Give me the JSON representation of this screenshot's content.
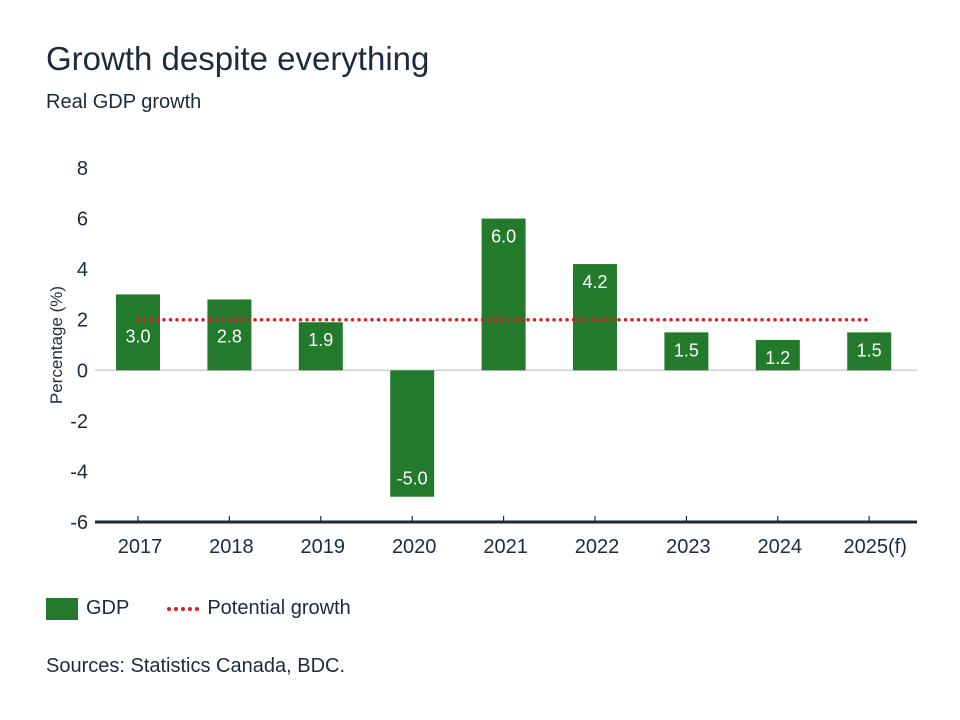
{
  "title": "Growth despite everything",
  "subtitle": "Real GDP growth",
  "source": "Sources: Statistics Canada, BDC.",
  "chart_data": {
    "type": "bar",
    "categories": [
      "2017",
      "2018",
      "2019",
      "2020",
      "2021",
      "2022",
      "2023",
      "2024",
      "2025(f)"
    ],
    "series": [
      {
        "name": "GDP",
        "values": [
          3.0,
          2.8,
          1.9,
          -5.0,
          6.0,
          4.2,
          1.5,
          1.2,
          1.5
        ],
        "color": "#237a2c"
      },
      {
        "name": "Potential growth",
        "type": "line",
        "style": "dotted",
        "values": [
          2,
          2,
          2,
          2,
          2,
          2,
          2,
          2,
          2
        ],
        "color": "#d61f26"
      }
    ],
    "data_labels": [
      "3.0",
      "2.8",
      "1.9",
      "-5.0",
      "6.0",
      "4.2",
      "1.5",
      "1.2",
      "1.5"
    ],
    "ylabel": "Percentage (%)",
    "xlabel": "",
    "ylim": [
      -6,
      8
    ],
    "yticks": [
      8,
      6,
      4,
      2,
      0,
      -2,
      -4,
      -6
    ],
    "grid": false,
    "legend": "bottom-left"
  }
}
